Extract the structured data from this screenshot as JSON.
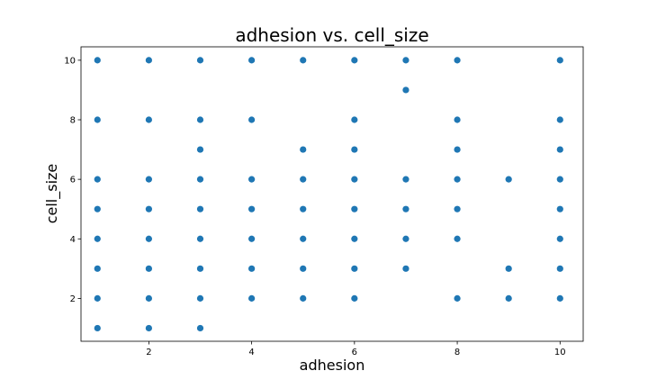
{
  "chart_data": {
    "type": "scatter",
    "title": "adhesion vs. cell_size",
    "xlabel": "adhesion",
    "ylabel": "cell_size",
    "xlim": [
      0.68,
      10.45
    ],
    "ylim": [
      0.56,
      10.45
    ],
    "xticks": [
      2,
      4,
      6,
      8,
      10
    ],
    "yticks": [
      2,
      4,
      6,
      8,
      10
    ],
    "grid": false,
    "point_color": "#1f77b4",
    "points": [
      [
        1,
        1
      ],
      [
        1,
        2
      ],
      [
        1,
        3
      ],
      [
        1,
        4
      ],
      [
        1,
        5
      ],
      [
        1,
        6
      ],
      [
        1,
        8
      ],
      [
        1,
        10
      ],
      [
        2,
        1
      ],
      [
        2,
        2
      ],
      [
        2,
        3
      ],
      [
        2,
        4
      ],
      [
        2,
        5
      ],
      [
        2,
        6
      ],
      [
        2,
        8
      ],
      [
        2,
        10
      ],
      [
        3,
        1
      ],
      [
        3,
        2
      ],
      [
        3,
        3
      ],
      [
        3,
        4
      ],
      [
        3,
        5
      ],
      [
        3,
        6
      ],
      [
        3,
        7
      ],
      [
        3,
        8
      ],
      [
        3,
        10
      ],
      [
        4,
        2
      ],
      [
        4,
        3
      ],
      [
        4,
        4
      ],
      [
        4,
        5
      ],
      [
        4,
        6
      ],
      [
        4,
        8
      ],
      [
        4,
        10
      ],
      [
        5,
        2
      ],
      [
        5,
        3
      ],
      [
        5,
        4
      ],
      [
        5,
        5
      ],
      [
        5,
        6
      ],
      [
        5,
        7
      ],
      [
        5,
        10
      ],
      [
        6,
        2
      ],
      [
        6,
        3
      ],
      [
        6,
        4
      ],
      [
        6,
        5
      ],
      [
        6,
        6
      ],
      [
        6,
        7
      ],
      [
        6,
        8
      ],
      [
        6,
        10
      ],
      [
        7,
        3
      ],
      [
        7,
        4
      ],
      [
        7,
        5
      ],
      [
        7,
        6
      ],
      [
        7,
        9
      ],
      [
        7,
        10
      ],
      [
        8,
        2
      ],
      [
        8,
        4
      ],
      [
        8,
        5
      ],
      [
        8,
        6
      ],
      [
        8,
        7
      ],
      [
        8,
        8
      ],
      [
        8,
        10
      ],
      [
        9,
        2
      ],
      [
        9,
        3
      ],
      [
        9,
        6
      ],
      [
        10,
        2
      ],
      [
        10,
        3
      ],
      [
        10,
        4
      ],
      [
        10,
        5
      ],
      [
        10,
        6
      ],
      [
        10,
        7
      ],
      [
        10,
        8
      ],
      [
        10,
        10
      ]
    ]
  }
}
